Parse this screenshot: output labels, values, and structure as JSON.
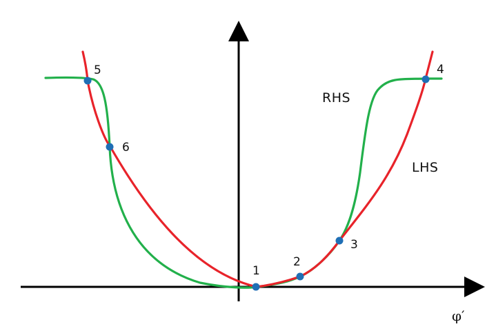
{
  "axis": {
    "x_label": "φ′"
  },
  "curves": {
    "rhs": {
      "label": "RHS",
      "color": "#22b04b"
    },
    "lhs": {
      "label": "LHS",
      "color": "#e8232a"
    }
  },
  "points": {
    "p1": "1",
    "p2": "2",
    "p3": "3",
    "p4": "4",
    "p5": "5",
    "p6": "6"
  },
  "colors": {
    "axis": "#000000",
    "point": "#1f6fb5"
  }
}
